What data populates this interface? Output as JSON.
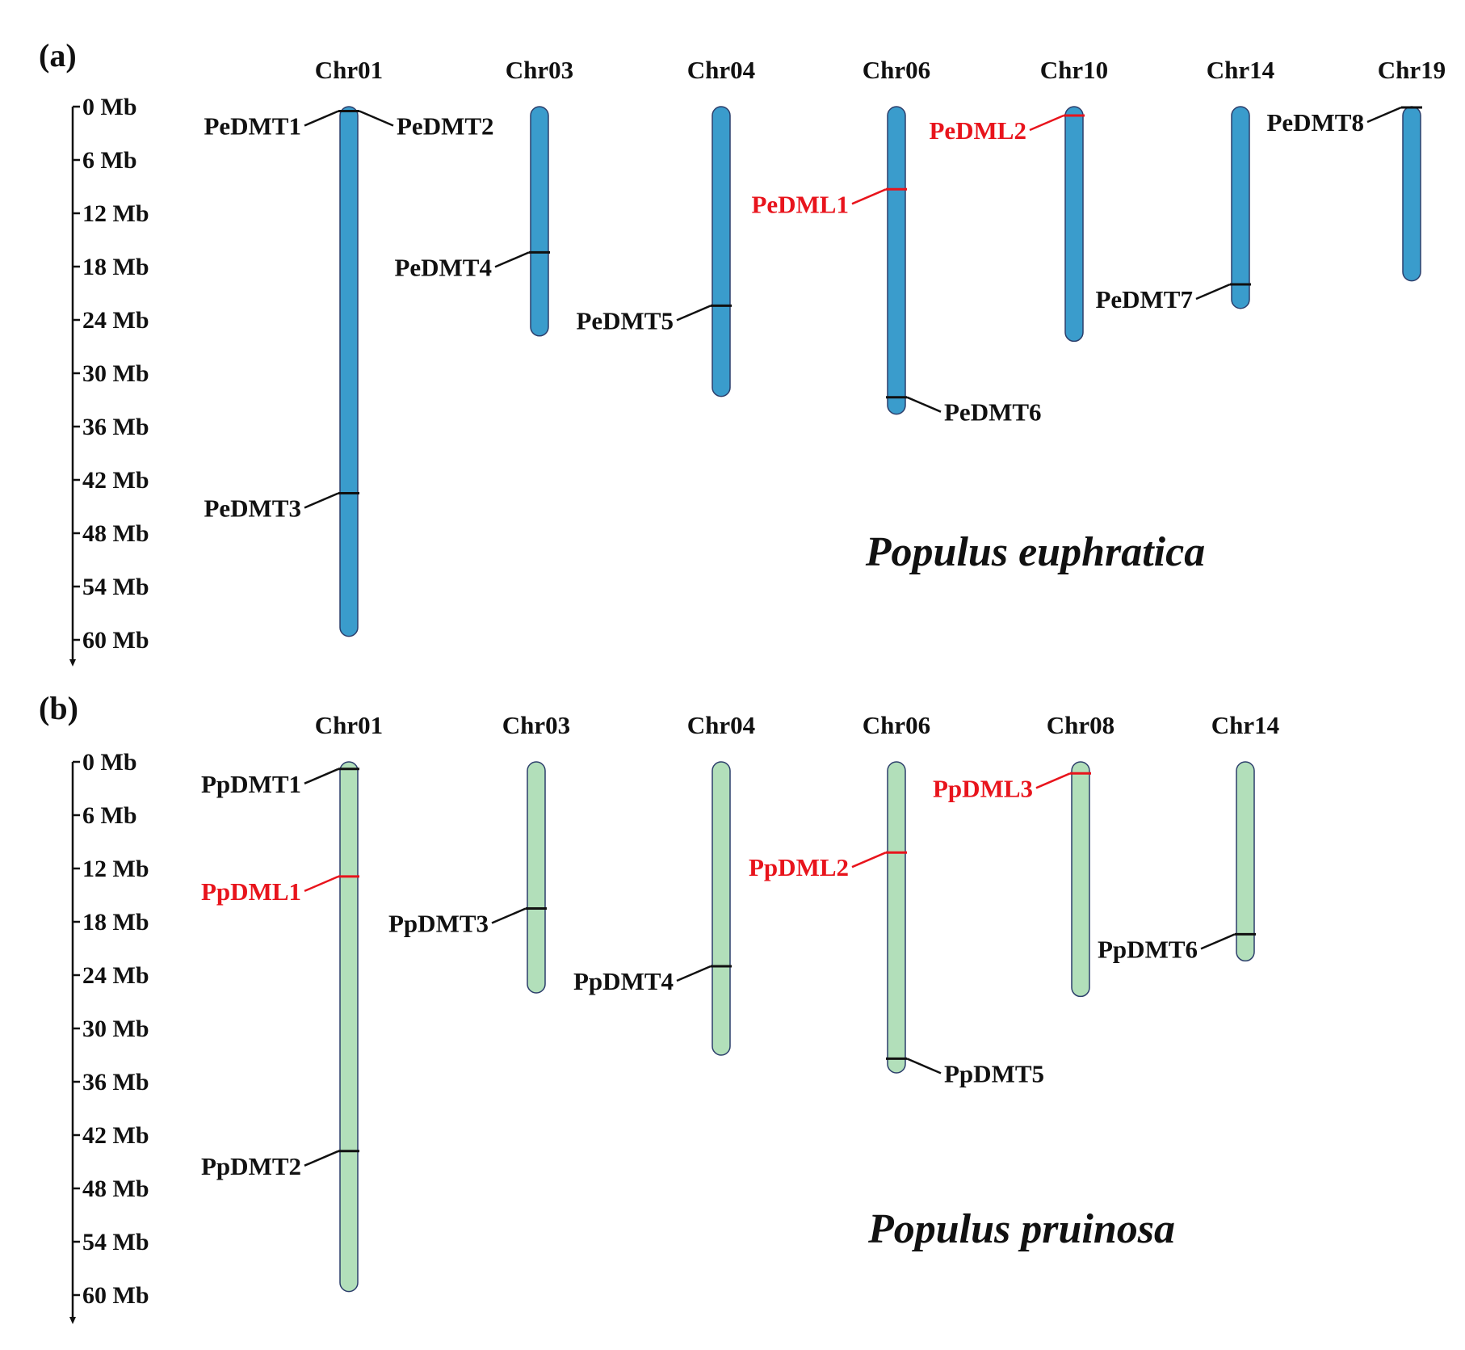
{
  "colors": {
    "dmt": "#111111",
    "dml": "#e8141c",
    "axis": "#111111",
    "outline": "#2c3e6b"
  },
  "panels": [
    {
      "panel_label": "(a)",
      "species": "Populus euphratica",
      "chrom_fill": "#3a9ccc",
      "axis_ticks": [
        "0 Mb",
        "6 Mb",
        "12 Mb",
        "18 Mb",
        "24 Mb",
        "30 Mb",
        "36 Mb",
        "42 Mb",
        "48 Mb",
        "54 Mb",
        "60 Mb"
      ],
      "chromosomes": [
        {
          "name": "Chr01",
          "length_mb": 59.6,
          "genes": [
            {
              "name": "PeDMT1",
              "pos_mb": 0.5,
              "side": "left",
              "type": "DMT"
            },
            {
              "name": "PeDMT2",
              "pos_mb": 0.5,
              "side": "right",
              "type": "DMT"
            },
            {
              "name": "PeDMT3",
              "pos_mb": 43.5,
              "side": "left",
              "type": "DMT"
            }
          ]
        },
        {
          "name": "Chr03",
          "length_mb": 25.8,
          "genes": [
            {
              "name": "PeDMT4",
              "pos_mb": 16.4,
              "side": "left",
              "type": "DMT"
            }
          ]
        },
        {
          "name": "Chr04",
          "length_mb": 32.6,
          "genes": [
            {
              "name": "PeDMT5",
              "pos_mb": 22.4,
              "side": "left",
              "type": "DMT"
            }
          ]
        },
        {
          "name": "Chr06",
          "length_mb": 34.6,
          "genes": [
            {
              "name": "PeDML1",
              "pos_mb": 9.3,
              "side": "left",
              "type": "DML"
            },
            {
              "name": "PeDMT6",
              "pos_mb": 32.7,
              "side": "right",
              "type": "DMT"
            }
          ]
        },
        {
          "name": "Chr10",
          "length_mb": 26.4,
          "genes": [
            {
              "name": "PeDML2",
              "pos_mb": 1.0,
              "side": "left",
              "type": "DML"
            }
          ]
        },
        {
          "name": "Chr14",
          "length_mb": 22.7,
          "genes": [
            {
              "name": "PeDMT7",
              "pos_mb": 20.0,
              "side": "left",
              "type": "DMT"
            }
          ]
        },
        {
          "name": "Chr19",
          "length_mb": 19.6,
          "genes": [
            {
              "name": "PeDMT8",
              "pos_mb": 0.0,
              "side": "left",
              "type": "DMT"
            }
          ]
        }
      ]
    },
    {
      "panel_label": "(b)",
      "species": "Populus pruinosa",
      "chrom_fill": "#b2dfba",
      "axis_ticks": [
        "0 Mb",
        "6 Mb",
        "12 Mb",
        "18 Mb",
        "24 Mb",
        "30 Mb",
        "36 Mb",
        "42 Mb",
        "48 Mb",
        "54 Mb",
        "60 Mb"
      ],
      "chromosomes": [
        {
          "name": "Chr01",
          "length_mb": 59.6,
          "genes": [
            {
              "name": "PpDMT1",
              "pos_mb": 0.8,
              "side": "left",
              "type": "DMT"
            },
            {
              "name": "PpDML1",
              "pos_mb": 12.9,
              "side": "left",
              "type": "DML"
            },
            {
              "name": "PpDMT2",
              "pos_mb": 43.8,
              "side": "left",
              "type": "DMT"
            }
          ]
        },
        {
          "name": "Chr03",
          "length_mb": 26.0,
          "genes": [
            {
              "name": "PpDMT3",
              "pos_mb": 16.5,
              "side": "left",
              "type": "DMT"
            }
          ]
        },
        {
          "name": "Chr04",
          "length_mb": 33.0,
          "genes": [
            {
              "name": "PpDMT4",
              "pos_mb": 23.0,
              "side": "left",
              "type": "DMT"
            }
          ]
        },
        {
          "name": "Chr06",
          "length_mb": 35.0,
          "genes": [
            {
              "name": "PpDML2",
              "pos_mb": 10.2,
              "side": "left",
              "type": "DML"
            },
            {
              "name": "PpDMT5",
              "pos_mb": 33.4,
              "side": "right",
              "type": "DMT"
            }
          ]
        },
        {
          "name": "Chr08",
          "length_mb": 26.4,
          "genes": [
            {
              "name": "PpDML3",
              "pos_mb": 1.3,
              "side": "left",
              "type": "DML"
            }
          ]
        },
        {
          "name": "Chr14",
          "length_mb": 22.4,
          "genes": [
            {
              "name": "PpDMT6",
              "pos_mb": 19.4,
              "side": "left",
              "type": "DMT"
            }
          ]
        }
      ]
    }
  ]
}
